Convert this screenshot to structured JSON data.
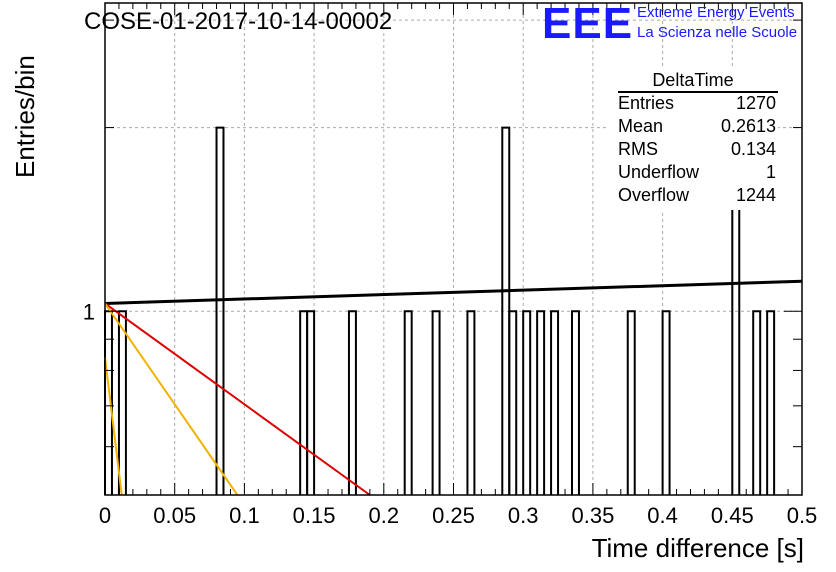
{
  "header": {
    "title": "COSE-01-2017-10-14-00002"
  },
  "logo": {
    "mark": "EEE",
    "line1": "Extreme Energy Events",
    "line2": "La Scienza nelle Scuole",
    "color": "#1a1aff"
  },
  "stats_box": {
    "title": "DeltaTime",
    "rows": [
      {
        "key": "Entries",
        "value": "1270"
      },
      {
        "key": "Mean",
        "value": "0.2613"
      },
      {
        "key": "RMS",
        "value": "0.134"
      },
      {
        "key": "Underflow",
        "value": "1"
      },
      {
        "key": "Overflow",
        "value": "1244"
      }
    ]
  },
  "chart_data": {
    "type": "histogram",
    "title": "COSE-01-2017-10-14-00002",
    "xlabel": "Time difference [s]",
    "ylabel": "Entries/bin",
    "xlim": [
      0,
      0.5
    ],
    "ylim": [
      0.5,
      3.2
    ],
    "y_log_scale": true,
    "grid": true,
    "x_ticks": [
      0,
      0.05,
      0.1,
      0.15,
      0.2,
      0.25,
      0.3,
      0.35,
      0.4,
      0.45,
      0.5
    ],
    "x_tick_labels": [
      "0",
      "0.05",
      "0.1",
      "0.15",
      "0.2",
      "0.25",
      "0.3",
      "0.35",
      "0.4",
      "0.45",
      "0.5"
    ],
    "y_tick_labels": [
      {
        "value": 1,
        "label": "1"
      }
    ],
    "bin_width": 0.005,
    "bins": [
      {
        "x": 0.0,
        "count": 1
      },
      {
        "x": 0.01,
        "count": 1
      },
      {
        "x": 0.08,
        "count": 2
      },
      {
        "x": 0.14,
        "count": 1
      },
      {
        "x": 0.145,
        "count": 1
      },
      {
        "x": 0.175,
        "count": 1
      },
      {
        "x": 0.215,
        "count": 1
      },
      {
        "x": 0.235,
        "count": 1
      },
      {
        "x": 0.26,
        "count": 1
      },
      {
        "x": 0.285,
        "count": 2
      },
      {
        "x": 0.29,
        "count": 1
      },
      {
        "x": 0.3,
        "count": 1
      },
      {
        "x": 0.31,
        "count": 1
      },
      {
        "x": 0.32,
        "count": 1
      },
      {
        "x": 0.335,
        "count": 1
      },
      {
        "x": 0.375,
        "count": 1
      },
      {
        "x": 0.4,
        "count": 1
      },
      {
        "x": 0.45,
        "count": 2
      },
      {
        "x": 0.465,
        "count": 1
      },
      {
        "x": 0.475,
        "count": 1
      }
    ],
    "fit_lines": [
      {
        "color": "#000000",
        "points": [
          [
            0,
            1.03
          ],
          [
            0.5,
            1.12
          ]
        ]
      },
      {
        "color": "#dd0000",
        "points": [
          [
            0,
            1.03
          ],
          [
            0.19,
            0.5
          ]
        ]
      },
      {
        "color": "#f0b400",
        "points": [
          [
            0,
            1.03
          ],
          [
            0.095,
            0.5
          ]
        ]
      },
      {
        "color": "#f0b400",
        "points": [
          [
            0,
            0.84
          ],
          [
            0.012,
            0.5
          ]
        ]
      }
    ]
  }
}
